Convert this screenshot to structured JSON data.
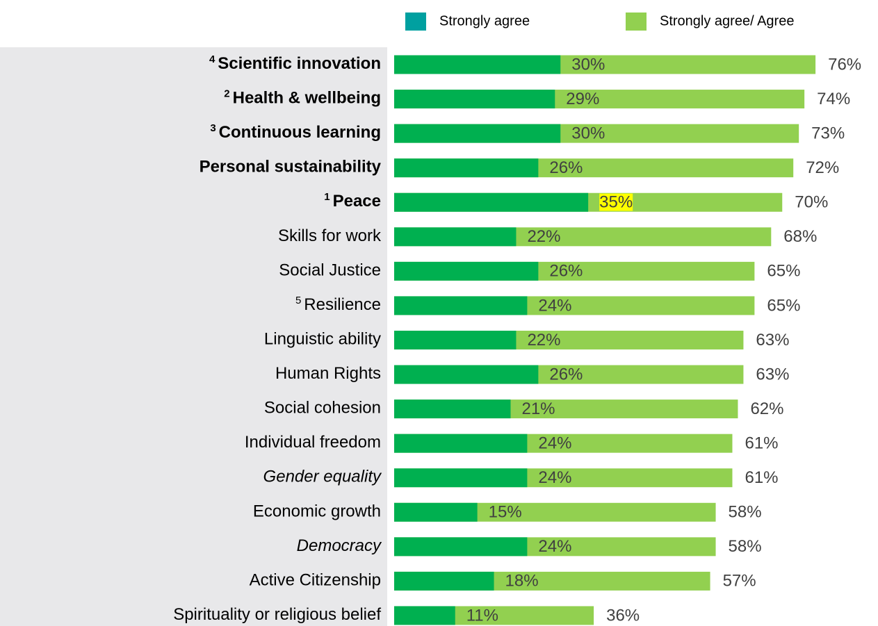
{
  "chart_data": {
    "type": "bar",
    "orientation": "horizontal",
    "overlap": true,
    "categories": [
      "Scientific innovation",
      "Health & wellbeing",
      "Continuous learning",
      "Personal sustainability",
      "Peace",
      "Skills for work",
      "Social Justice",
      "Resilience",
      "Linguistic ability",
      "Human  Rights",
      "Social cohesion",
      "Individual  freedom",
      "Gender equality",
      "Economic growth",
      "Democracy",
      "Active Citizenship",
      "Spirituality or religious belief"
    ],
    "superscripts": [
      "4",
      "2",
      "3",
      null,
      "1",
      null,
      null,
      "5",
      null,
      null,
      null,
      null,
      null,
      null,
      null,
      null,
      null
    ],
    "label_styles": [
      "bold",
      "bold",
      "bold",
      "bold",
      "bold",
      "normal",
      "normal",
      "normal",
      "normal",
      "normal",
      "normal",
      "normal",
      "italic",
      "normal",
      "italic",
      "normal",
      "normal"
    ],
    "series": [
      {
        "name": "Strongly agree",
        "color": "#00b050",
        "legend_color": "#00a0a0",
        "values": [
          30,
          29,
          30,
          26,
          35,
          22,
          26,
          24,
          22,
          26,
          21,
          24,
          24,
          15,
          24,
          18,
          11
        ],
        "value_labels": [
          "30%",
          "29%",
          "30%",
          "26%",
          "35%",
          "22%",
          "26%",
          "24%",
          "22%",
          "26%",
          "21%",
          "24%",
          "24%",
          "15%",
          "24%",
          "18%",
          "11%"
        ],
        "highlight": [
          false,
          false,
          false,
          false,
          true,
          false,
          false,
          false,
          false,
          false,
          false,
          false,
          false,
          false,
          false,
          false,
          false
        ]
      },
      {
        "name": "Strongly agree/ Agree",
        "color": "#92d050",
        "legend_color": "#92d050",
        "values": [
          76,
          74,
          73,
          72,
          70,
          68,
          65,
          65,
          63,
          63,
          62,
          61,
          61,
          58,
          58,
          57,
          36
        ],
        "value_labels": [
          "76%",
          "74%",
          "73%",
          "72%",
          "70%",
          "68%",
          "65%",
          "65%",
          "63%",
          "63%",
          "62%",
          "61%",
          "61%",
          "58%",
          "58%",
          "57%",
          "36%"
        ]
      }
    ]
  }
}
